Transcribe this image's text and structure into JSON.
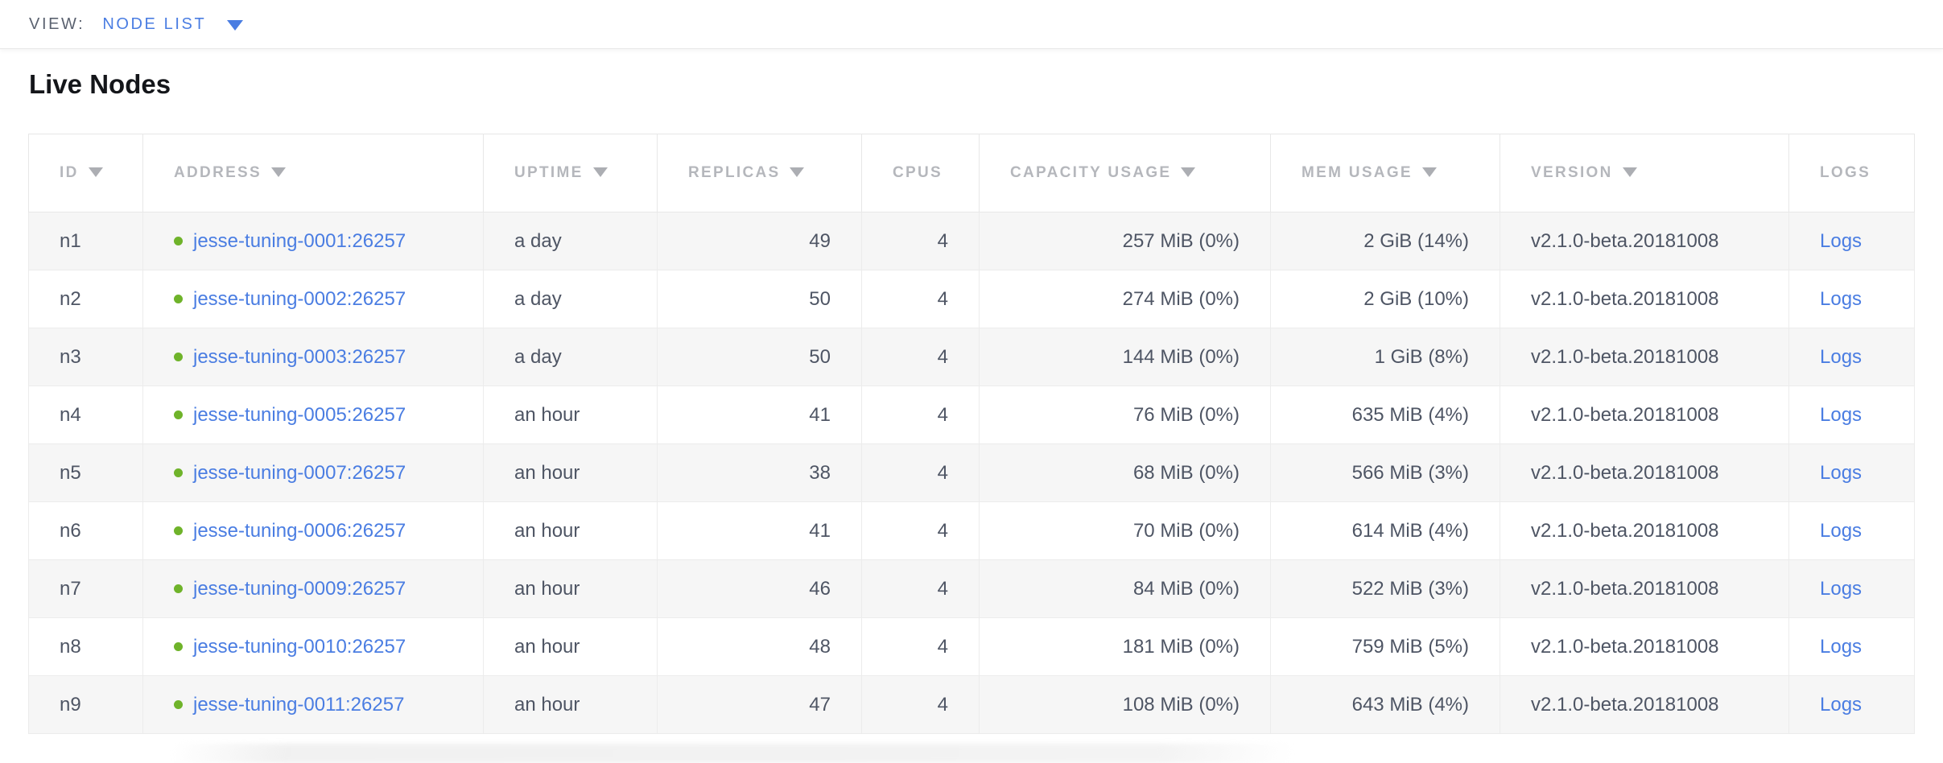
{
  "toolbar": {
    "view_label": "VIEW:",
    "view_value": "NODE LIST"
  },
  "page": {
    "title": "Live Nodes"
  },
  "colors": {
    "accent_blue": "#4a7de2",
    "link_blue": "#4a7de2",
    "status_green": "#6fb32a",
    "header_gray": "#b5b7bc",
    "body_text": "#4e5564",
    "row_alt_bg": "#f6f6f6",
    "border": "#ececec"
  },
  "table": {
    "columns": [
      {
        "key": "id",
        "label": "ID",
        "sortable": true,
        "align": "left"
      },
      {
        "key": "address",
        "label": "ADDRESS",
        "sortable": true,
        "align": "left"
      },
      {
        "key": "uptime",
        "label": "UPTIME",
        "sortable": true,
        "align": "left"
      },
      {
        "key": "replicas",
        "label": "REPLICAS",
        "sortable": true,
        "align": "right"
      },
      {
        "key": "cpus",
        "label": "CPUS",
        "sortable": false,
        "align": "right"
      },
      {
        "key": "capacity",
        "label": "CAPACITY USAGE",
        "sortable": true,
        "align": "right"
      },
      {
        "key": "mem",
        "label": "MEM USAGE",
        "sortable": true,
        "align": "right"
      },
      {
        "key": "version",
        "label": "VERSION",
        "sortable": true,
        "align": "left"
      },
      {
        "key": "logs",
        "label": "LOGS",
        "sortable": false,
        "align": "left"
      }
    ],
    "rows": [
      {
        "id": "n1",
        "address": "jesse-tuning-0001:26257",
        "status": "healthy",
        "uptime": "a day",
        "replicas": "49",
        "cpus": "4",
        "capacity": "257 MiB (0%)",
        "mem": "2 GiB (14%)",
        "version": "v2.1.0-beta.20181008",
        "logs": "Logs"
      },
      {
        "id": "n2",
        "address": "jesse-tuning-0002:26257",
        "status": "healthy",
        "uptime": "a day",
        "replicas": "50",
        "cpus": "4",
        "capacity": "274 MiB (0%)",
        "mem": "2 GiB (10%)",
        "version": "v2.1.0-beta.20181008",
        "logs": "Logs"
      },
      {
        "id": "n3",
        "address": "jesse-tuning-0003:26257",
        "status": "healthy",
        "uptime": "a day",
        "replicas": "50",
        "cpus": "4",
        "capacity": "144 MiB (0%)",
        "mem": "1 GiB (8%)",
        "version": "v2.1.0-beta.20181008",
        "logs": "Logs"
      },
      {
        "id": "n4",
        "address": "jesse-tuning-0005:26257",
        "status": "healthy",
        "uptime": "an hour",
        "replicas": "41",
        "cpus": "4",
        "capacity": "76 MiB (0%)",
        "mem": "635 MiB (4%)",
        "version": "v2.1.0-beta.20181008",
        "logs": "Logs"
      },
      {
        "id": "n5",
        "address": "jesse-tuning-0007:26257",
        "status": "healthy",
        "uptime": "an hour",
        "replicas": "38",
        "cpus": "4",
        "capacity": "68 MiB (0%)",
        "mem": "566 MiB (3%)",
        "version": "v2.1.0-beta.20181008",
        "logs": "Logs"
      },
      {
        "id": "n6",
        "address": "jesse-tuning-0006:26257",
        "status": "healthy",
        "uptime": "an hour",
        "replicas": "41",
        "cpus": "4",
        "capacity": "70 MiB (0%)",
        "mem": "614 MiB (4%)",
        "version": "v2.1.0-beta.20181008",
        "logs": "Logs"
      },
      {
        "id": "n7",
        "address": "jesse-tuning-0009:26257",
        "status": "healthy",
        "uptime": "an hour",
        "replicas": "46",
        "cpus": "4",
        "capacity": "84 MiB (0%)",
        "mem": "522 MiB (3%)",
        "version": "v2.1.0-beta.20181008",
        "logs": "Logs"
      },
      {
        "id": "n8",
        "address": "jesse-tuning-0010:26257",
        "status": "healthy",
        "uptime": "an hour",
        "replicas": "48",
        "cpus": "4",
        "capacity": "181 MiB (0%)",
        "mem": "759 MiB (5%)",
        "version": "v2.1.0-beta.20181008",
        "logs": "Logs"
      },
      {
        "id": "n9",
        "address": "jesse-tuning-0011:26257",
        "status": "healthy",
        "uptime": "an hour",
        "replicas": "47",
        "cpus": "4",
        "capacity": "108 MiB (0%)",
        "mem": "643 MiB (4%)",
        "version": "v2.1.0-beta.20181008",
        "logs": "Logs"
      }
    ]
  }
}
